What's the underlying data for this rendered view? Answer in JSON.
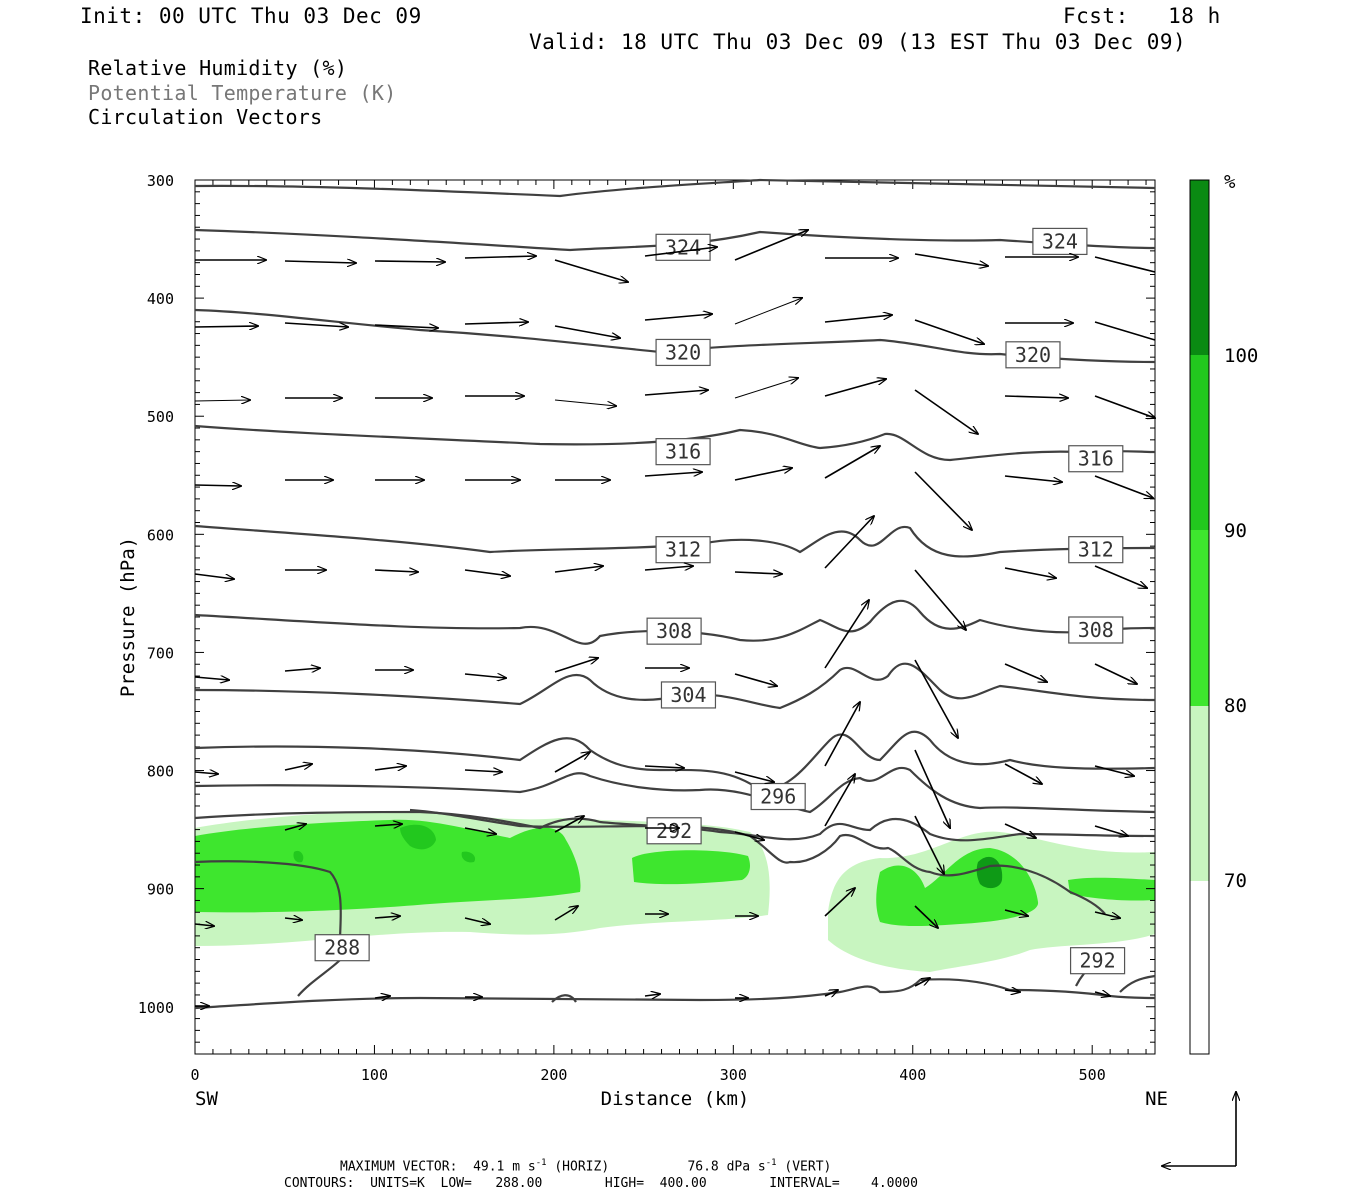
{
  "header": {
    "init": "Init: 00 UTC Thu 03 Dec 09",
    "fcst": "Fcst:   18 h",
    "valid": "Valid: 18 UTC Thu 03 Dec 09 (13 EST Thu 03 Dec 09)"
  },
  "legend": {
    "rh": "Relative Humidity (%)",
    "theta": "Potential Temperature (K)",
    "vectors": "Circulation Vectors"
  },
  "colors": {
    "rh70": "#c8f5c0",
    "rh80": "#6ef05e",
    "rh90": "#22c81e",
    "rh100": "#0a8a12",
    "contour": "#404040"
  },
  "chart_data": {
    "type": "cross-section",
    "xlabel": "Distance (km)",
    "ylabel": "Pressure (hPa)",
    "xlim": [
      0,
      535
    ],
    "ylim": [
      1040,
      300
    ],
    "x_ticks": [
      "0",
      "100",
      "200",
      "300",
      "400",
      "500"
    ],
    "y_ticks": [
      "300",
      "400",
      "500",
      "600",
      "700",
      "800",
      "900",
      "1000"
    ],
    "left_end_label": "SW",
    "right_end_label": "NE",
    "colorbar": {
      "unit": "%",
      "levels": [
        "70",
        "80",
        "90",
        "100"
      ]
    },
    "theta_contour_labels": [
      {
        "text": "324",
        "x": 272,
        "p": 357
      },
      {
        "text": "324",
        "x": 482,
        "p": 352
      },
      {
        "text": "320",
        "x": 272,
        "p": 446
      },
      {
        "text": "320",
        "x": 467,
        "p": 448
      },
      {
        "text": "316",
        "x": 272,
        "p": 530
      },
      {
        "text": "316",
        "x": 502,
        "p": 536
      },
      {
        "text": "312",
        "x": 272,
        "p": 613
      },
      {
        "text": "312",
        "x": 502,
        "p": 613
      },
      {
        "text": "308",
        "x": 267,
        "p": 682
      },
      {
        "text": "308",
        "x": 502,
        "p": 681
      },
      {
        "text": "304",
        "x": 275,
        "p": 736
      },
      {
        "text": "296",
        "x": 325,
        "p": 822
      },
      {
        "text": "292",
        "x": 267,
        "p": 851
      },
      {
        "text": "288",
        "x": 82,
        "p": 950
      },
      {
        "text": "292",
        "x": 503,
        "p": 961
      }
    ],
    "footer": {
      "max_vector_label": "MAXIMUM VECTOR:",
      "max_horiz_value": "49.1",
      "max_horiz_unit": "m s",
      "max_horiz_note": "(HORIZ)",
      "max_vert_value": "76.8",
      "max_vert_unit": "dPa s",
      "max_vert_note": "(VERT)",
      "unit_exponent": "-1",
      "contours_line": "CONTOURS:  UNITS=K  LOW=   288.00        HIGH=  400.00        INTERVAL=    4.0000"
    }
  }
}
